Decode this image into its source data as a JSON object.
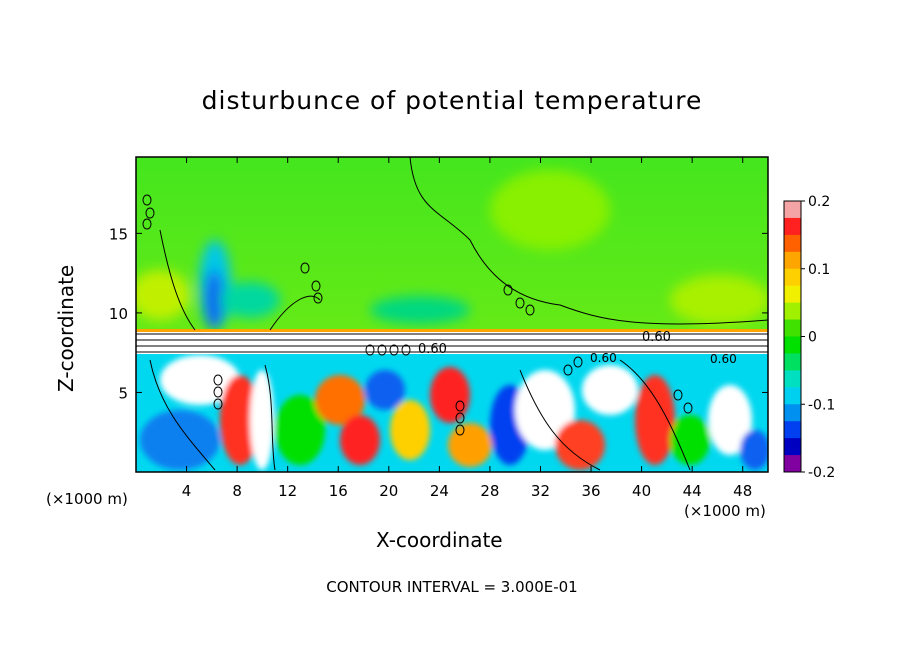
{
  "title": "disturbunce of potential temperature",
  "xlabel": "X-coordinate",
  "ylabel": "Z-coordinate",
  "x_unit_left": "(×1000 m)",
  "x_unit_right": "(×1000 m)",
  "contour_interval": "CONTOUR INTERVAL = 3.000E-01",
  "contour_labels": [
    "0.60",
    "0.60",
    "0.60",
    "0.60"
  ],
  "chart_data": {
    "type": "heatmap",
    "title": "disturbunce of potential temperature",
    "xlabel": "X-coordinate",
    "ylabel": "Z-coordinate",
    "x_ticks": [
      "4",
      "8",
      "12",
      "16",
      "20",
      "24",
      "28",
      "32",
      "36",
      "40",
      "44",
      "48"
    ],
    "y_ticks": [
      "5",
      "10",
      "15"
    ],
    "xlim": [
      0,
      50
    ],
    "ylim": [
      0,
      19.8
    ],
    "colorbar": {
      "ticks": [
        "0.2",
        "0.1",
        "0",
        "-0.1",
        "-0.2"
      ],
      "range": [
        -0.2,
        0.2
      ],
      "colors": [
        "#f4a4a4",
        "#ff2020",
        "#ff6000",
        "#ffa500",
        "#ffd000",
        "#f0f000",
        "#a0f000",
        "#40e000",
        "#00e000",
        "#00e060",
        "#00e0c0",
        "#00d0f0",
        "#0090f0",
        "#0040f0",
        "#0000c0",
        "#8000a0"
      ]
    },
    "contour_interval": 0.3
  }
}
